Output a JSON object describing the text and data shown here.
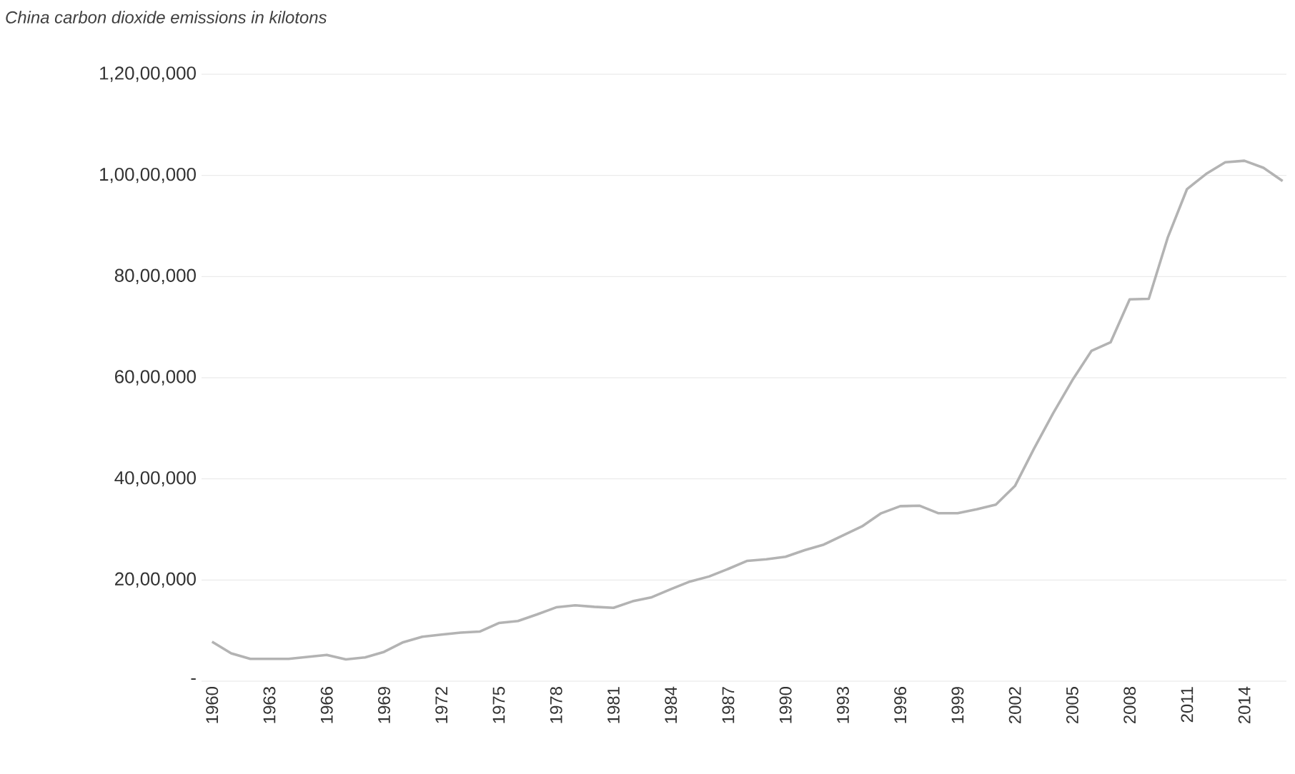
{
  "chart_data": {
    "type": "line",
    "title": "China carbon dioxide emissions in kilotons",
    "categories": [
      "1960",
      null,
      null,
      "1963",
      null,
      null,
      "1966",
      null,
      null,
      "1969",
      null,
      null,
      "1972",
      null,
      null,
      "1975",
      null,
      null,
      "1978",
      null,
      null,
      "1981",
      null,
      null,
      "1984",
      null,
      null,
      "1987",
      null,
      null,
      "1990",
      null,
      null,
      "1993",
      null,
      null,
      "1996",
      null,
      null,
      "1999",
      null,
      null,
      "2002",
      null,
      null,
      "2005",
      null,
      null,
      "2008",
      null,
      null,
      "2011",
      null,
      null,
      "2014",
      null,
      null
    ],
    "values": [
      780000,
      550000,
      440000,
      440000,
      440000,
      480000,
      520000,
      430000,
      470000,
      580000,
      770000,
      880000,
      920000,
      960000,
      980000,
      1150000,
      1190000,
      1320000,
      1460000,
      1500000,
      1470000,
      1450000,
      1580000,
      1660000,
      1820000,
      1970000,
      2070000,
      2220000,
      2380000,
      2410000,
      2460000,
      2590000,
      2700000,
      2880000,
      3060000,
      3320000,
      3460000,
      3470000,
      3320000,
      3320000,
      3400000,
      3490000,
      3860000,
      4600000,
      5300000,
      5950000,
      6530000,
      6700000,
      7550000,
      7560000,
      8780000,
      9730000,
      10030000,
      10260000,
      10290000,
      10150000,
      9890000
    ],
    "color": "#b3b3b3",
    "ylim": [
      0,
      12000000
    ],
    "yticks": [
      {
        "value": 0,
        "label": "-"
      },
      {
        "value": 2000000,
        "label": "20,00,000"
      },
      {
        "value": 4000000,
        "label": "40,00,000"
      },
      {
        "value": 6000000,
        "label": "60,00,000"
      },
      {
        "value": 8000000,
        "label": "80,00,000"
      },
      {
        "value": 10000000,
        "label": "1,00,00,000"
      },
      {
        "value": 12000000,
        "label": "1,20,00,000"
      }
    ],
    "grid": "y"
  }
}
